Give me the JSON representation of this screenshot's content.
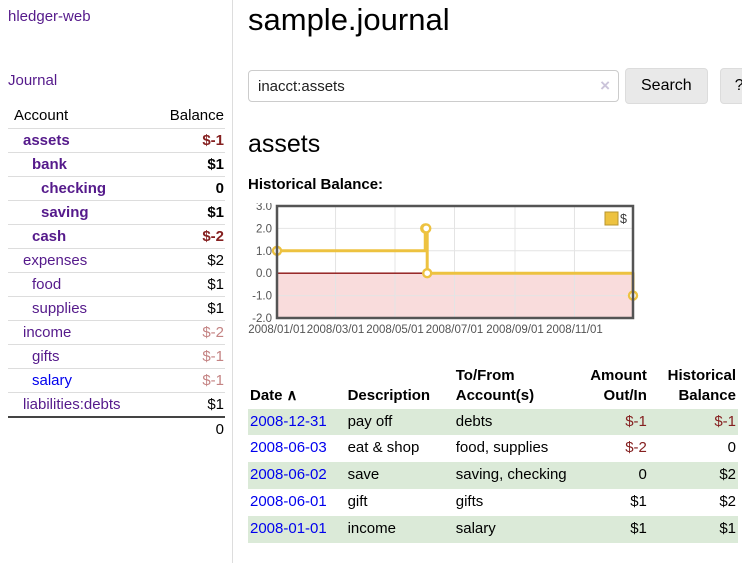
{
  "sidebar": {
    "brand": "hledger-web",
    "nav_journal": "Journal",
    "balance_table": {
      "col_account": "Account",
      "col_balance": "Balance",
      "rows": [
        {
          "name": "assets",
          "level": 0,
          "emphasis": true,
          "link_style": "visited",
          "balance": "$-1",
          "balance_tone": "negative"
        },
        {
          "name": "bank",
          "level": 1,
          "emphasis": true,
          "link_style": "visited",
          "balance": "$1",
          "balance_tone": "default"
        },
        {
          "name": "checking",
          "level": 2,
          "emphasis": true,
          "link_style": "visited",
          "balance": "0",
          "balance_tone": "default"
        },
        {
          "name": "saving",
          "level": 2,
          "emphasis": true,
          "link_style": "visited",
          "balance": "$1",
          "balance_tone": "default"
        },
        {
          "name": "cash",
          "level": 1,
          "emphasis": true,
          "link_style": "visited",
          "balance": "$-2",
          "balance_tone": "negative"
        },
        {
          "name": "expenses",
          "level": 0,
          "emphasis": false,
          "link_style": "visited",
          "balance": "$2",
          "balance_tone": "default"
        },
        {
          "name": "food",
          "level": 1,
          "emphasis": false,
          "link_style": "visited",
          "balance": "$1",
          "balance_tone": "default"
        },
        {
          "name": "supplies",
          "level": 1,
          "emphasis": false,
          "link_style": "visited",
          "balance": "$1",
          "balance_tone": "default"
        },
        {
          "name": "income",
          "level": 0,
          "emphasis": false,
          "link_style": "visited",
          "balance": "$-2",
          "balance_tone": "negative_muted"
        },
        {
          "name": "gifts",
          "level": 1,
          "emphasis": false,
          "link_style": "visited",
          "balance": "$-1",
          "balance_tone": "negative_muted"
        },
        {
          "name": "salary",
          "level": 1,
          "emphasis": false,
          "link_style": "unvisited",
          "balance": "$-1",
          "balance_tone": "negative_muted"
        },
        {
          "name": "liabilities:debts",
          "level": 0,
          "emphasis": false,
          "link_style": "visited",
          "balance": "$1",
          "balance_tone": "default"
        }
      ],
      "total": "0"
    }
  },
  "main": {
    "title": "sample.journal",
    "search": {
      "value": "inacct:assets",
      "clear_icon": "×",
      "button_label": "Search",
      "help_label": "?"
    },
    "account_heading": "assets",
    "chart_label": "Historical Balance:",
    "register": {
      "columns": [
        "Date",
        "Description",
        "To/From Account(s)",
        "Amount Out/In",
        "Historical Balance"
      ],
      "sort_icon": "∧",
      "rows": [
        {
          "date": "2008-12-31",
          "description": "pay off",
          "accounts": "debts",
          "amount": "$-1",
          "amount_negative": true,
          "balance": "$-1",
          "balance_negative": true,
          "shaded": true
        },
        {
          "date": "2008-06-03",
          "description": "eat & shop",
          "accounts": "food, supplies",
          "amount": "$-2",
          "amount_negative": true,
          "balance": "0",
          "balance_negative": false,
          "shaded": false
        },
        {
          "date": "2008-06-02",
          "description": "save",
          "accounts": "saving, checking",
          "amount": "0",
          "amount_negative": false,
          "balance": "$2",
          "balance_negative": false,
          "shaded": true
        },
        {
          "date": "2008-06-01",
          "description": "gift",
          "accounts": "gifts",
          "amount": "$1",
          "amount_negative": false,
          "balance": "$2",
          "balance_negative": false,
          "shaded": false
        },
        {
          "date": "2008-01-01",
          "description": "income",
          "accounts": "salary",
          "amount": "$1",
          "amount_negative": false,
          "balance": "$1",
          "balance_negative": false,
          "shaded": true
        }
      ]
    }
  },
  "chart_data": {
    "type": "line",
    "step": true,
    "title": "Historical Balance of assets",
    "series": [
      {
        "name": "$",
        "color": "#edc240",
        "points": [
          [
            "2008-01-01",
            1
          ],
          [
            "2008-06-01",
            2
          ],
          [
            "2008-06-02",
            2
          ],
          [
            "2008-06-03",
            0
          ],
          [
            "2008-12-31",
            -1
          ]
        ]
      }
    ],
    "x_domain": [
      "2008-01-01",
      "2008-12-31"
    ],
    "x_ticks": [
      "2008/01/01",
      "2008/03/01",
      "2008/05/01",
      "2008/07/01",
      "2008/09/01",
      "2008/11/01"
    ],
    "y_ticks": [
      "3.0",
      "2.0",
      "1.0",
      "0.0",
      "-1.0",
      "-2.0"
    ],
    "ylim": [
      -2,
      3
    ],
    "grid": true,
    "legend": {
      "label": "$",
      "position": "top-right"
    },
    "negative_region_color": "#f9dcdc",
    "zero_line_color": "#8b1010",
    "axis_text_color": "#545454",
    "plot_border_color": "#545454"
  }
}
